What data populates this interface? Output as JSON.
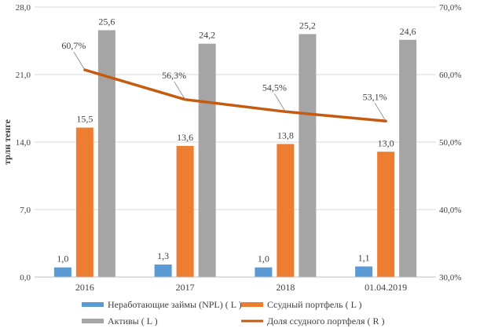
{
  "chart_data": {
    "type": "bar",
    "categories": [
      "2016",
      "2017",
      "2018",
      "01.04.2019"
    ],
    "ylabel": "трлн тенге",
    "ylim": [
      0,
      28
    ],
    "yticks": [
      "0,0",
      "7,0",
      "14,0",
      "21,0",
      "28,0"
    ],
    "ylim_right": [
      30,
      70
    ],
    "yticks_right": [
      "30,0%",
      "40,0%",
      "50,0%",
      "60,0%",
      "70,0%"
    ],
    "grid": true,
    "legend_position": "bottom",
    "series": [
      {
        "name": "Неработающие займы (NPL) ( L )",
        "type": "bar",
        "axis": "left",
        "color": "#5b9bd5",
        "values": [
          1.0,
          1.3,
          1.0,
          1.1
        ],
        "labels": [
          "1,0",
          "1,3",
          "1,0",
          "1,1"
        ]
      },
      {
        "name": "Ссудный портфель ( L )",
        "type": "bar",
        "axis": "left",
        "color": "#ed7d31",
        "values": [
          15.5,
          13.6,
          13.8,
          13.0
        ],
        "labels": [
          "15,5",
          "13,6",
          "13,8",
          "13,0"
        ]
      },
      {
        "name": "Активы ( L )",
        "type": "bar",
        "axis": "left",
        "color": "#a5a5a5",
        "values": [
          25.6,
          24.2,
          25.2,
          24.6
        ],
        "labels": [
          "25,6",
          "24,2",
          "25,2",
          "24,6"
        ]
      },
      {
        "name": "Доля ссудного портфеля ( R )",
        "type": "line",
        "axis": "right",
        "color": "#c55a11",
        "values": [
          60.7,
          56.3,
          54.5,
          53.1
        ],
        "labels": [
          "60,7%",
          "56,3%",
          "54,5%",
          "53,1%"
        ]
      }
    ]
  }
}
